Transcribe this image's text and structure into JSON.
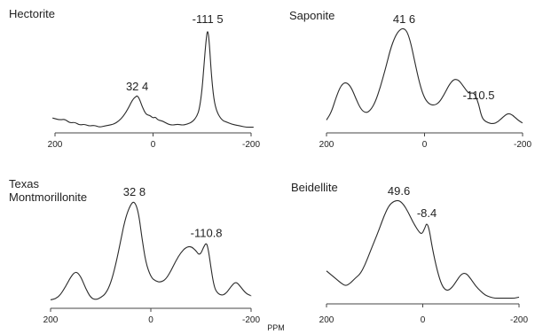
{
  "figure": {
    "xlabel": "PPM"
  },
  "chart_data": [
    {
      "type": "line",
      "title": "Hectorite",
      "title_lines": [
        "Hectorite"
      ],
      "xlim": [
        200,
        -200
      ],
      "x_ticks": [
        200,
        0,
        -200
      ],
      "x_tick_labels": [
        "200",
        "0",
        "-200"
      ],
      "peak_labels": [
        {
          "text": "32 4",
          "x": 32.4
        },
        {
          "text": "-111 5",
          "x": -111.5
        }
      ],
      "x": [
        205,
        190,
        180,
        170,
        160,
        150,
        140,
        130,
        120,
        110,
        100,
        90,
        80,
        70,
        60,
        50,
        45,
        40,
        35,
        32.4,
        28,
        22,
        15,
        10,
        5,
        0,
        -5,
        -10,
        -20,
        -30,
        -40,
        -50,
        -60,
        -70,
        -80,
        -90,
        -95,
        -100,
        -104,
        -108,
        -111.5,
        -115,
        -119,
        -124,
        -130,
        -140,
        -150,
        -160,
        -170,
        -180,
        -190,
        -205
      ],
      "y": [
        0.12,
        0.1,
        0.11,
        0.07,
        0.08,
        0.05,
        0.06,
        0.04,
        0.05,
        0.03,
        0.04,
        0.05,
        0.06,
        0.09,
        0.14,
        0.22,
        0.27,
        0.31,
        0.33,
        0.34,
        0.31,
        0.23,
        0.16,
        0.15,
        0.14,
        0.12,
        0.13,
        0.1,
        0.09,
        0.06,
        0.05,
        0.06,
        0.05,
        0.06,
        0.08,
        0.14,
        0.22,
        0.4,
        0.65,
        0.88,
        1.0,
        0.85,
        0.55,
        0.3,
        0.18,
        0.1,
        0.08,
        0.06,
        0.05,
        0.04,
        0.03,
        0.03
      ]
    },
    {
      "type": "line",
      "title": "Saponite",
      "title_lines": [
        "Saponite"
      ],
      "xlim": [
        200,
        -200
      ],
      "x_ticks": [
        200,
        0,
        -200
      ],
      "x_tick_labels": [
        "200",
        "0",
        "-200"
      ],
      "peak_labels": [
        {
          "text": "41 6",
          "x": 41.6
        },
        {
          "text": "-110.5",
          "x": -110.5
        }
      ],
      "x": [
        200,
        190,
        180,
        170,
        160,
        150,
        140,
        130,
        120,
        110,
        100,
        90,
        80,
        70,
        60,
        50,
        41.6,
        35,
        28,
        20,
        10,
        0,
        -10,
        -20,
        -30,
        -40,
        -50,
        -60,
        -70,
        -80,
        -90,
        -100,
        -105,
        -110.5,
        -115,
        -120,
        -130,
        -140,
        -150,
        -160,
        -170,
        -180,
        -190,
        -200
      ],
      "y": [
        0.06,
        0.14,
        0.3,
        0.42,
        0.45,
        0.4,
        0.28,
        0.17,
        0.13,
        0.16,
        0.25,
        0.4,
        0.58,
        0.78,
        0.92,
        0.99,
        1.0,
        0.96,
        0.85,
        0.66,
        0.43,
        0.28,
        0.22,
        0.21,
        0.24,
        0.32,
        0.42,
        0.48,
        0.47,
        0.4,
        0.33,
        0.34,
        0.3,
        0.22,
        0.12,
        0.06,
        0.03,
        0.02,
        0.04,
        0.09,
        0.13,
        0.11,
        0.06,
        0.03
      ]
    },
    {
      "type": "line",
      "title": "Texas Montmorillonite",
      "title_lines": [
        "Texas",
        "Montmorillonite"
      ],
      "xlim": [
        200,
        -200
      ],
      "x_ticks": [
        200,
        0,
        -200
      ],
      "x_tick_labels": [
        "200",
        "0",
        "-200"
      ],
      "peak_labels": [
        {
          "text": "32 8",
          "x": 32.8
        },
        {
          "text": "-110.8",
          "x": -110.8
        }
      ],
      "x": [
        200,
        190,
        180,
        170,
        160,
        150,
        140,
        130,
        120,
        110,
        100,
        90,
        80,
        70,
        60,
        50,
        40,
        32.8,
        25,
        18,
        10,
        0,
        -10,
        -20,
        -30,
        -40,
        -50,
        -60,
        -70,
        -80,
        -90,
        -95,
        -100,
        -105,
        -110.8,
        -115,
        -120,
        -125,
        -130,
        -140,
        -150,
        -160,
        -170,
        -180,
        -190,
        -200
      ],
      "y": [
        0.04,
        0.05,
        0.09,
        0.17,
        0.26,
        0.32,
        0.27,
        0.15,
        0.06,
        0.04,
        0.06,
        0.1,
        0.2,
        0.38,
        0.62,
        0.85,
        0.97,
        1.0,
        0.9,
        0.65,
        0.4,
        0.26,
        0.22,
        0.21,
        0.24,
        0.32,
        0.42,
        0.5,
        0.55,
        0.56,
        0.52,
        0.48,
        0.49,
        0.55,
        0.6,
        0.52,
        0.35,
        0.2,
        0.12,
        0.08,
        0.1,
        0.17,
        0.22,
        0.16,
        0.1,
        0.08
      ]
    },
    {
      "type": "line",
      "title": "Beidellite",
      "title_lines": [
        "Beidellite"
      ],
      "xlim": [
        200,
        -200
      ],
      "x_ticks": [
        200,
        0,
        -200
      ],
      "x_tick_labels": [
        "200",
        "0",
        "-200"
      ],
      "peak_labels": [
        {
          "text": "49.6",
          "x": 49.6
        },
        {
          "text": "-8.4",
          "x": -8.4
        }
      ],
      "x": [
        200,
        190,
        180,
        170,
        160,
        150,
        140,
        130,
        120,
        110,
        100,
        90,
        80,
        70,
        60,
        49.6,
        40,
        30,
        20,
        10,
        2,
        -4,
        -8.4,
        -14,
        -20,
        -30,
        -40,
        -50,
        -60,
        -70,
        -80,
        -90,
        -100,
        -110,
        -120,
        -130,
        -140,
        -150,
        -160,
        -170,
        -180,
        -190,
        -200
      ],
      "y": [
        0.3,
        0.26,
        0.22,
        0.18,
        0.15,
        0.18,
        0.23,
        0.27,
        0.36,
        0.48,
        0.6,
        0.72,
        0.85,
        0.95,
        0.99,
        1.0,
        0.96,
        0.88,
        0.78,
        0.7,
        0.66,
        0.72,
        0.78,
        0.7,
        0.52,
        0.3,
        0.15,
        0.1,
        0.13,
        0.2,
        0.27,
        0.28,
        0.22,
        0.15,
        0.1,
        0.06,
        0.04,
        0.03,
        0.03,
        0.03,
        0.03,
        0.03,
        0.04
      ]
    }
  ]
}
